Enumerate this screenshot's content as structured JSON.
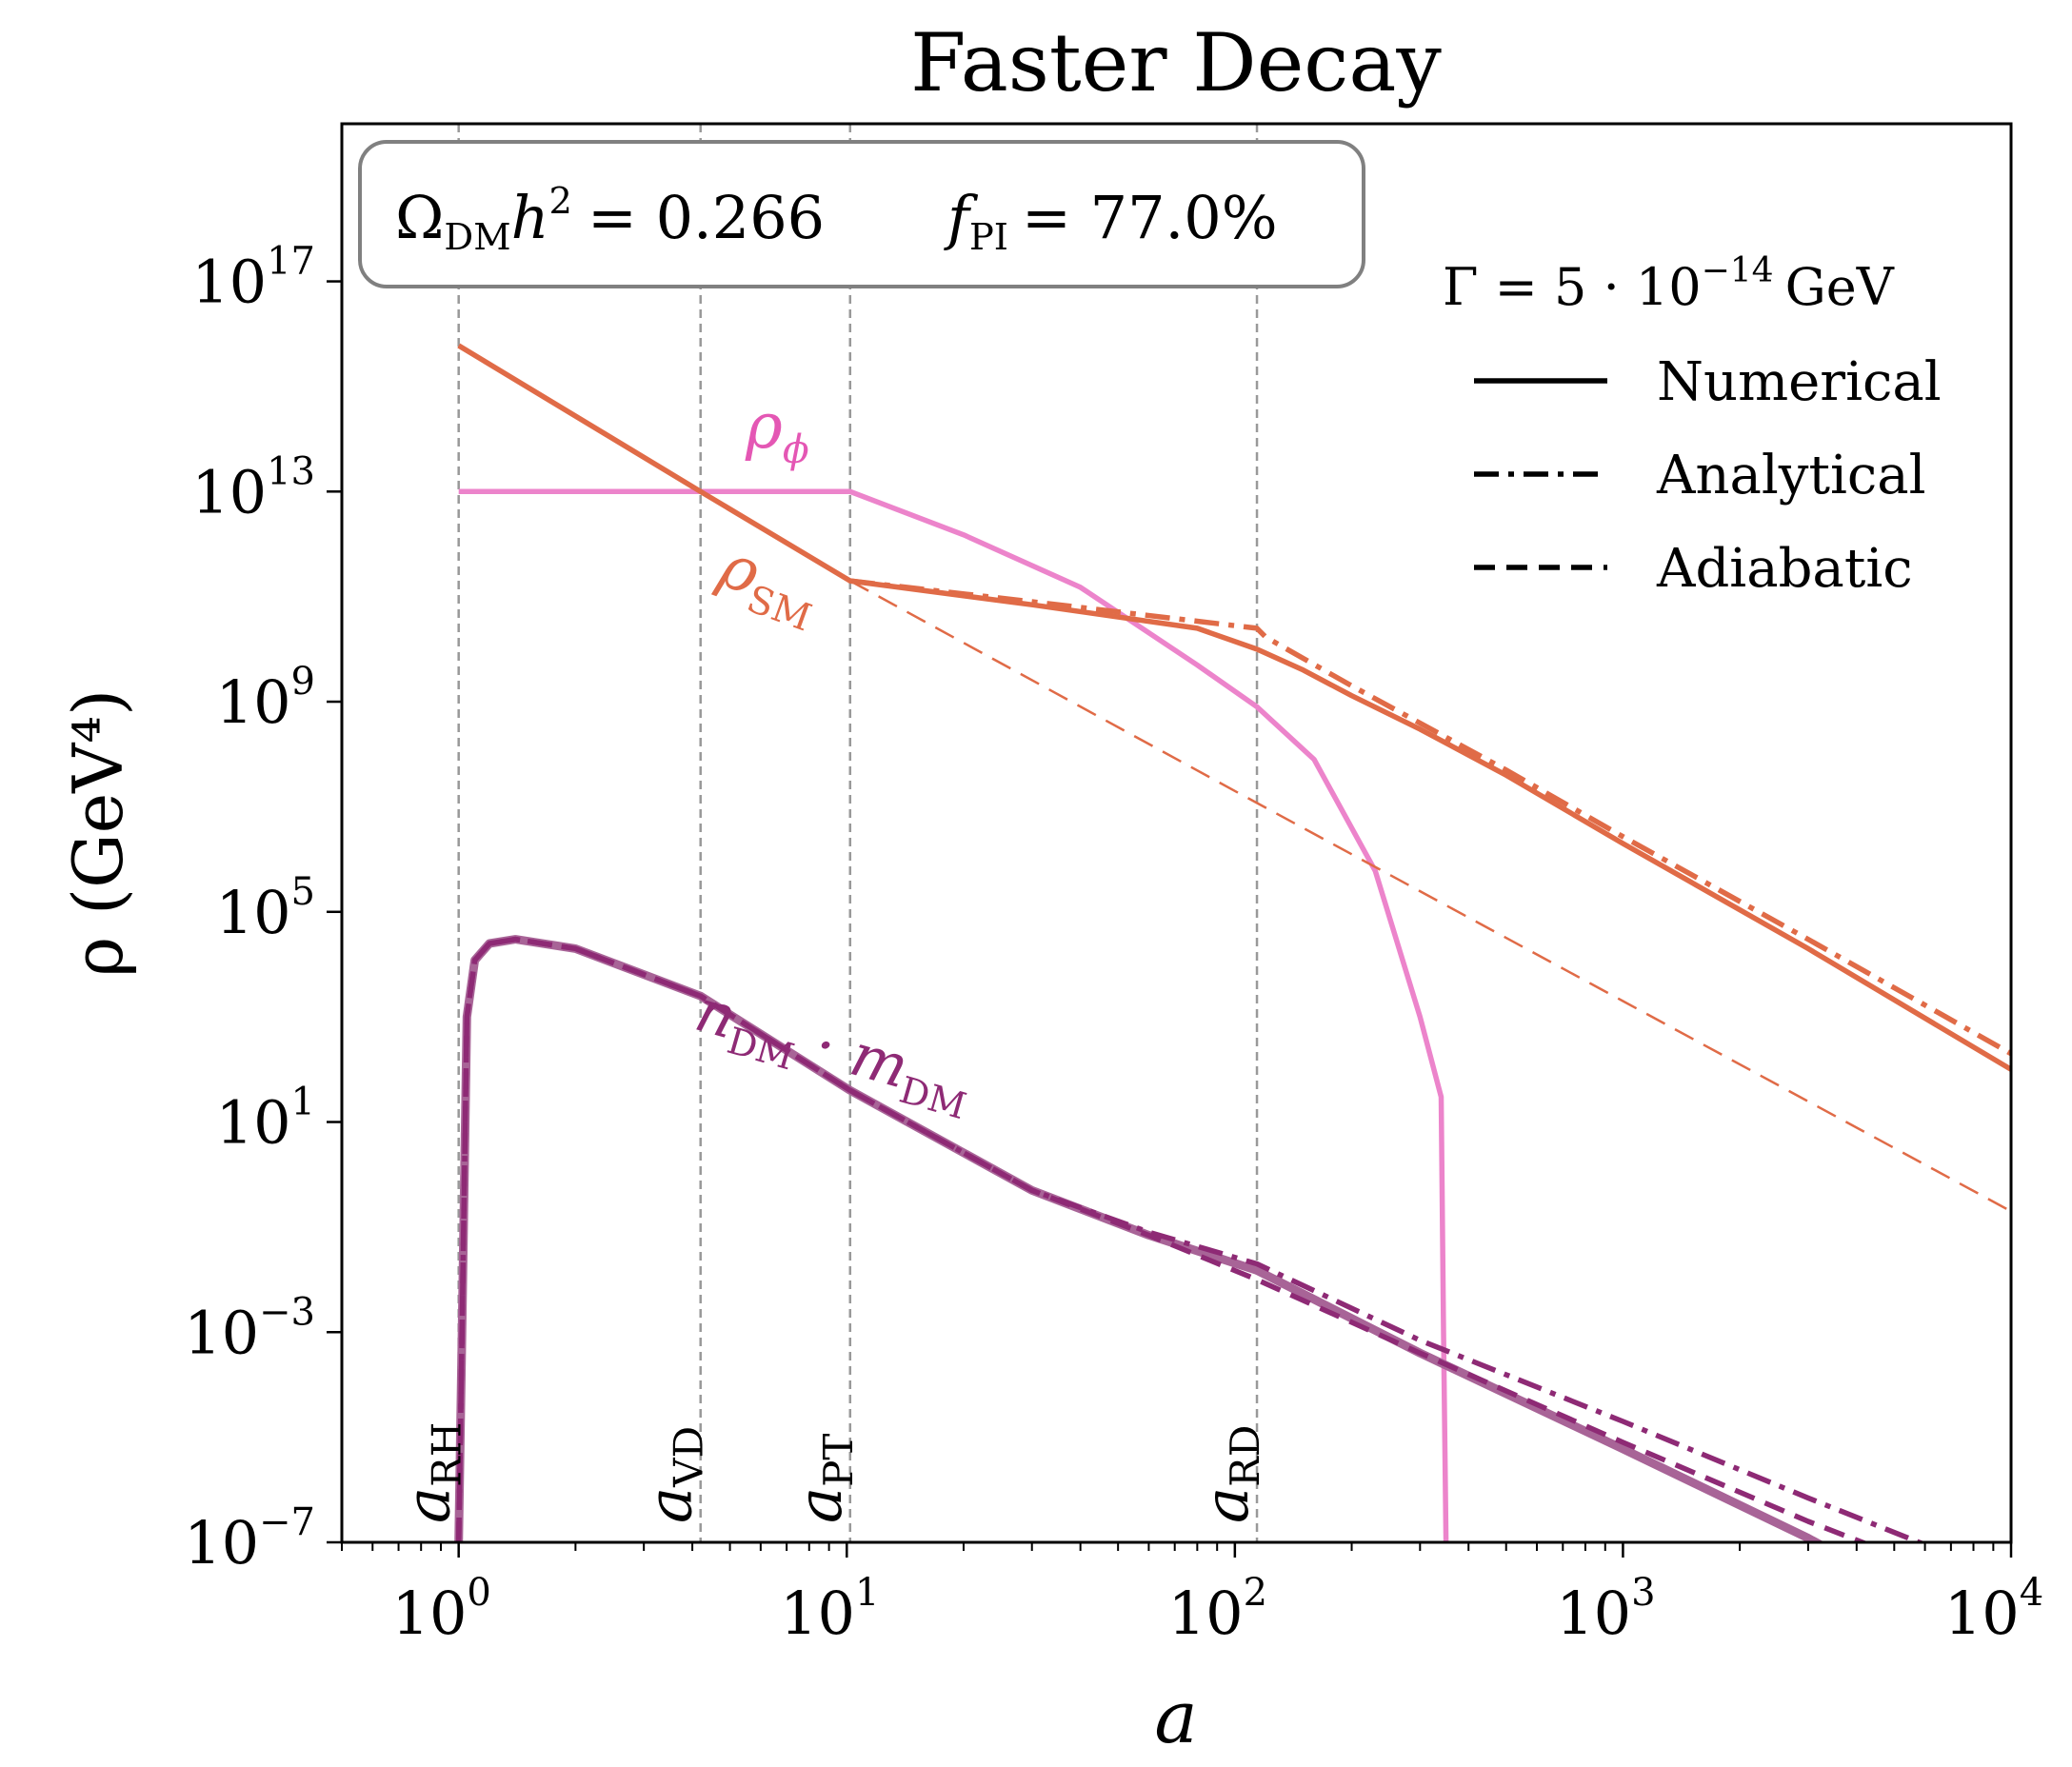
{
  "chart_data": {
    "type": "line",
    "title": "Faster Decay",
    "xlabel": "a",
    "ylabel": "ρ (GeV⁴)",
    "xscale": "log",
    "yscale": "log",
    "xlim": [
      0.5,
      10000
    ],
    "ylim": [
      1e-07,
      1e+20
    ],
    "xticks": [
      {
        "value": 1,
        "base": "10",
        "exp": "0"
      },
      {
        "value": 10,
        "base": "10",
        "exp": "1"
      },
      {
        "value": 100,
        "base": "10",
        "exp": "2"
      },
      {
        "value": 1000,
        "base": "10",
        "exp": "3"
      },
      {
        "value": 10000,
        "base": "10",
        "exp": "4"
      }
    ],
    "yticks": [
      {
        "value": 1e-07,
        "base": "10",
        "exp": "−7"
      },
      {
        "value": 0.001,
        "base": "10",
        "exp": "−3"
      },
      {
        "value": 10,
        "base": "10",
        "exp": "1"
      },
      {
        "value": 100000.0,
        "base": "10",
        "exp": "5"
      },
      {
        "value": 1000000000.0,
        "base": "10",
        "exp": "9"
      },
      {
        "value": 10000000000000.0,
        "base": "10",
        "exp": "13"
      },
      {
        "value": 1e+17,
        "base": "10",
        "exp": "17"
      }
    ],
    "grid": false,
    "info_box": {
      "omega_text": "Ω",
      "omega_sub": "DM",
      "omega_h": "h",
      "omega_h_sup": "2",
      "omega_value": "= 0.266",
      "f_text": "f",
      "f_sub": "PI",
      "f_value": "= 77.0%"
    },
    "legend": {
      "position": "top-right",
      "title_pre": "Γ = 5 · 10",
      "title_exp": "−14",
      "title_post": "GeV",
      "entries": [
        {
          "label": "Numerical",
          "style": "solid"
        },
        {
          "label": "Analytical",
          "style": "dashdot"
        },
        {
          "label": "Adiabatic",
          "style": "dashed"
        }
      ]
    },
    "vlines": [
      {
        "x": 1.0,
        "label_main": "a",
        "label_sub": "RH"
      },
      {
        "x": 4.2,
        "label_main": "a",
        "label_sub": "VD"
      },
      {
        "x": 10.2,
        "label_main": "a",
        "label_sub": "PT"
      },
      {
        "x": 114,
        "label_main": "a",
        "label_sub": "RD"
      }
    ],
    "curve_labels": [
      {
        "main": "ρ",
        "sub": "ϕ",
        "color": "#e457b4"
      },
      {
        "main": "ρ",
        "sub": "SM",
        "color": "#e06b47"
      },
      {
        "main": "n",
        "sub": "DM",
        "mid": " · m",
        "sub2": "DM",
        "color": "#8e2a75"
      }
    ],
    "series": [
      {
        "id": "rho_phi_numerical",
        "style": "solid",
        "color": "#ec84cb",
        "x": [
          1,
          10.2,
          20,
          40,
          80,
          114,
          160,
          230,
          300,
          340,
          345,
          350
        ],
        "y": [
          10000000000000.0,
          10000000000000.0,
          1500000000000.0,
          150000000000.0,
          5000000000.0,
          800000000.0,
          80000000.0,
          600000.0,
          1000.0,
          30.0,
          0.001,
          1e-07
        ]
      },
      {
        "id": "rho_sm_numerical",
        "style": "solid",
        "color": "#e06b47",
        "x": [
          1,
          4.2,
          10.2,
          30,
          80,
          114,
          150,
          200,
          300,
          500,
          1000,
          3000,
          10000
        ],
        "y": [
          6000000000000000.0,
          10000000000000.0,
          200000000000.0,
          70000000000.0,
          25000000000.0,
          10000000000.0,
          4000000000.0,
          1300000000.0,
          300000000.0,
          40000000.0,
          2000000.0,
          20000.0,
          100.0
        ]
      },
      {
        "id": "rho_sm_analytical",
        "style": "dashdot",
        "color": "#e06b47",
        "x": [
          10.2,
          30,
          114,
          120,
          200,
          500,
          1000,
          3000,
          10000
        ],
        "y": [
          200000000000.0,
          80000000000.0,
          25000000000.0,
          17000000000.0,
          2000000000.0,
          50000000.0,
          2700000.0,
          30000.0,
          200.0
        ]
      },
      {
        "id": "rho_sm_adiabatic",
        "style": "dashed",
        "color": "#e06b47",
        "x": [
          10.2,
          100,
          1000,
          10000
        ],
        "y": [
          200000000000.0,
          20000000.0,
          2000.0,
          0.2
        ]
      },
      {
        "id": "dm_numerical",
        "style": "solid",
        "color": "#a86497",
        "x": [
          1.0,
          1.02,
          1.05,
          1.1,
          1.2,
          1.4,
          2,
          4.2,
          10.2,
          30,
          60,
          114,
          300,
          1000,
          3000,
          10000
        ],
        "y": [
          1e-07,
          0.001,
          1000.0,
          12000.0,
          25000.0,
          30000.0,
          20000.0,
          2500.0,
          40,
          0.5,
          0.07,
          0.015,
          0.0004,
          6e-06,
          1.2e-07,
          1e-09
        ]
      },
      {
        "id": "dm_analytical",
        "style": "dashdot",
        "color": "#8e2a75",
        "x": [
          1.0,
          1.02,
          1.05,
          1.1,
          1.2,
          1.4,
          2,
          4.2,
          10.2,
          30,
          60,
          114,
          300,
          1000,
          3000,
          10000
        ],
        "y": [
          1e-07,
          0.001,
          1000.0,
          12000.0,
          25000.0,
          30000.0,
          20000.0,
          2500.0,
          40,
          0.5,
          0.08,
          0.02,
          0.0007,
          2e-05,
          7e-07,
          2e-08
        ]
      },
      {
        "id": "dm_adiabatic",
        "style": "dashed",
        "color": "#8e2a75",
        "x": [
          1.0,
          1.02,
          1.05,
          1.1,
          1.2,
          1.4,
          2,
          4.2,
          10.2,
          30,
          60,
          114,
          300,
          1000,
          3000,
          10000
        ],
        "y": [
          1e-07,
          0.001,
          1000.0,
          12000.0,
          25000.0,
          30000.0,
          20000.0,
          2500.0,
          40,
          0.5,
          0.07,
          0.01,
          0.0004,
          8e-06,
          2.5e-07,
          8e-09
        ]
      }
    ]
  }
}
